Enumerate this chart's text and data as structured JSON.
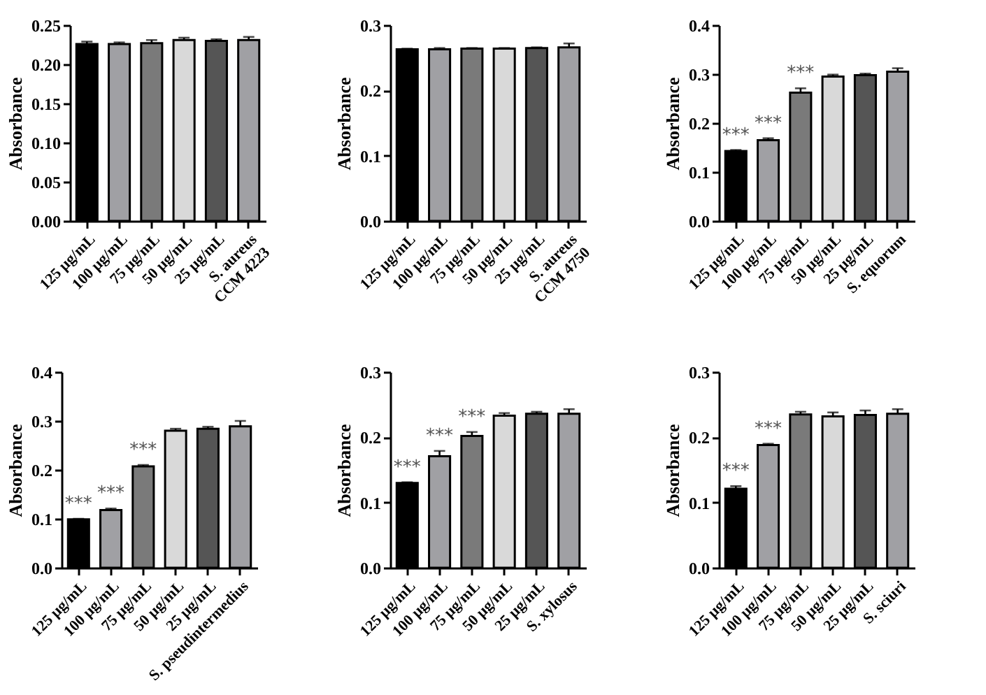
{
  "chart_data": [
    {
      "type": "bar",
      "ylabel": "Absorbance",
      "categories": [
        "125 µg/mL",
        "100 µg/mL",
        "75 µg/mL",
        "50 µg/mL",
        "25 µg/mL",
        "S. aureus\nCCM 4223"
      ],
      "values": [
        0.226,
        0.226,
        0.227,
        0.231,
        0.23,
        0.231
      ],
      "errors": [
        0.003,
        0.002,
        0.004,
        0.003,
        0.002,
        0.004
      ],
      "colors": [
        "#000000",
        "#a0a0a4",
        "#7a7a7a",
        "#d9d9d9",
        "#555555",
        "#a0a0a4"
      ],
      "ylim": [
        0,
        0.25
      ],
      "yticks": [
        {
          "value": 0,
          "label": "0.00"
        },
        {
          "value": 0.05,
          "label": "0.05"
        },
        {
          "value": 0.1,
          "label": "0.10"
        },
        {
          "value": 0.15,
          "label": "0.15"
        },
        {
          "value": 0.2,
          "label": "0.20"
        },
        {
          "value": 0.25,
          "label": "0.25"
        }
      ],
      "grid": false
    },
    {
      "type": "bar",
      "ylabel": "Absorbance",
      "categories": [
        "125 µg/mL",
        "100 µg/mL",
        "75 µg/mL",
        "50 µg/mL",
        "25 µg/mL",
        "S. aureus\nCCM 4750"
      ],
      "values": [
        0.263,
        0.263,
        0.264,
        0.264,
        0.265,
        0.266
      ],
      "errors": [
        0.001,
        0.002,
        0.001,
        0.001,
        0.001,
        0.006
      ],
      "colors": [
        "#000000",
        "#a0a0a4",
        "#7a7a7a",
        "#d9d9d9",
        "#555555",
        "#a0a0a4"
      ],
      "ylim": [
        0,
        0.3
      ],
      "yticks": [
        {
          "value": 0,
          "label": "0.0"
        },
        {
          "value": 0.1,
          "label": "0.1"
        },
        {
          "value": 0.2,
          "label": "0.2"
        },
        {
          "value": 0.3,
          "label": "0.3"
        }
      ],
      "grid": false
    },
    {
      "type": "bar",
      "ylabel": "Absorbance",
      "categories": [
        "125 µg/mL",
        "100 µg/mL",
        "75 µg/mL",
        "50 µg/mL",
        "25 µg/mL",
        "S. equorum"
      ],
      "values": [
        0.143,
        0.165,
        0.262,
        0.295,
        0.298,
        0.305
      ],
      "errors": [
        0.002,
        0.004,
        0.009,
        0.004,
        0.003,
        0.007
      ],
      "colors": [
        "#000000",
        "#a0a0a4",
        "#7a7a7a",
        "#d9d9d9",
        "#555555",
        "#a0a0a4"
      ],
      "ylim": [
        0,
        0.4
      ],
      "yticks": [
        {
          "value": 0,
          "label": "0.0"
        },
        {
          "value": 0.1,
          "label": "0.1"
        },
        {
          "value": 0.2,
          "label": "0.2"
        },
        {
          "value": 0.3,
          "label": "0.3"
        },
        {
          "value": 0.4,
          "label": "0.4"
        }
      ],
      "grid": false,
      "annotations": [
        {
          "text": "***",
          "x": "125 µg/mL",
          "y": 0.145
        },
        {
          "text": "***",
          "x": "100 µg/mL",
          "y": 0.169
        },
        {
          "text": "***",
          "x": "75 µg/mL",
          "y": 0.271
        }
      ]
    },
    {
      "type": "bar",
      "ylabel": "Absorbance",
      "categories": [
        "125 µg/mL",
        "100 µg/mL",
        "75 µg/mL",
        "50 µg/mL",
        "25 µg/mL",
        "S. pseudintermedius"
      ],
      "values": [
        0.099,
        0.118,
        0.207,
        0.28,
        0.284,
        0.289
      ],
      "errors": [
        0.001,
        0.003,
        0.003,
        0.004,
        0.004,
        0.011
      ],
      "colors": [
        "#000000",
        "#a0a0a4",
        "#7a7a7a",
        "#d9d9d9",
        "#555555",
        "#a0a0a4"
      ],
      "ylim": [
        0,
        0.4
      ],
      "yticks": [
        {
          "value": 0,
          "label": "0.0"
        },
        {
          "value": 0.1,
          "label": "0.1"
        },
        {
          "value": 0.2,
          "label": "0.2"
        },
        {
          "value": 0.3,
          "label": "0.3"
        },
        {
          "value": 0.4,
          "label": "0.4"
        }
      ],
      "grid": false,
      "annotations": [
        {
          "text": "***",
          "x": "125 µg/mL",
          "y": 0.1
        },
        {
          "text": "***",
          "x": "100 µg/mL",
          "y": 0.121
        },
        {
          "text": "***",
          "x": "75 µg/mL",
          "y": 0.21
        }
      ]
    },
    {
      "type": "bar",
      "ylabel": "Absorbance",
      "categories": [
        "125 µg/mL",
        "100 µg/mL",
        "75 µg/mL",
        "50 µg/mL",
        "25 µg/mL",
        "S. xylosus"
      ],
      "values": [
        0.13,
        0.171,
        0.202,
        0.233,
        0.236,
        0.236
      ],
      "errors": [
        0.001,
        0.008,
        0.006,
        0.004,
        0.003,
        0.007
      ],
      "colors": [
        "#000000",
        "#a0a0a4",
        "#7a7a7a",
        "#d9d9d9",
        "#555555",
        "#a0a0a4"
      ],
      "ylim": [
        0,
        0.3
      ],
      "yticks": [
        {
          "value": 0,
          "label": "0.0"
        },
        {
          "value": 0.1,
          "label": "0.1"
        },
        {
          "value": 0.2,
          "label": "0.2"
        },
        {
          "value": 0.3,
          "label": "0.3"
        }
      ],
      "grid": false,
      "annotations": [
        {
          "text": "***",
          "x": "125 µg/mL",
          "y": 0.131
        },
        {
          "text": "***",
          "x": "100 µg/mL",
          "y": 0.179
        },
        {
          "text": "***",
          "x": "75 µg/mL",
          "y": 0.208
        }
      ]
    },
    {
      "type": "bar",
      "ylabel": "Absorbance",
      "categories": [
        "125 µg/mL",
        "100 µg/mL",
        "75 µg/mL",
        "50 µg/mL",
        "25 µg/mL",
        "S. sciuri"
      ],
      "values": [
        0.121,
        0.188,
        0.235,
        0.232,
        0.234,
        0.236
      ],
      "errors": [
        0.004,
        0.002,
        0.004,
        0.006,
        0.007,
        0.007
      ],
      "colors": [
        "#000000",
        "#a0a0a4",
        "#7a7a7a",
        "#d9d9d9",
        "#555555",
        "#a0a0a4"
      ],
      "ylim": [
        0,
        0.3
      ],
      "yticks": [
        {
          "value": 0,
          "label": "0.0"
        },
        {
          "value": 0.1,
          "label": "0.1"
        },
        {
          "value": 0.2,
          "label": "0.2"
        },
        {
          "value": 0.3,
          "label": "0.3"
        }
      ],
      "grid": false,
      "annotations": [
        {
          "text": "***",
          "x": "125 µg/mL",
          "y": 0.125
        },
        {
          "text": "***",
          "x": "100 µg/mL",
          "y": 0.19
        }
      ]
    }
  ]
}
